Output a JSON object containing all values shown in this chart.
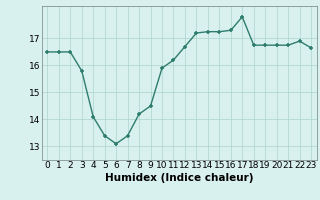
{
  "x": [
    0,
    1,
    2,
    3,
    4,
    5,
    6,
    7,
    8,
    9,
    10,
    11,
    12,
    13,
    14,
    15,
    16,
    17,
    18,
    19,
    20,
    21,
    22,
    23
  ],
  "y": [
    16.5,
    16.5,
    16.5,
    15.8,
    14.1,
    13.4,
    13.1,
    13.4,
    14.2,
    14.5,
    15.9,
    16.2,
    16.7,
    17.2,
    17.25,
    17.25,
    17.3,
    17.8,
    16.75,
    16.75,
    16.75,
    16.75,
    16.9,
    16.65
  ],
  "line_color": "#2e7d6e",
  "marker": "+",
  "bg_color": "#d8f0ee",
  "grid_color": "#aed4ce",
  "xlabel": "Humidex (Indice chaleur)",
  "xlim": [
    -0.5,
    23.5
  ],
  "ylim": [
    12.5,
    18.2
  ],
  "yticks": [
    13,
    14,
    15,
    16,
    17
  ],
  "xticks": [
    0,
    1,
    2,
    3,
    4,
    5,
    6,
    7,
    8,
    9,
    10,
    11,
    12,
    13,
    14,
    15,
    16,
    17,
    18,
    19,
    20,
    21,
    22,
    23
  ],
  "tick_fontsize": 6.5,
  "xlabel_fontsize": 7.5,
  "linewidth": 1.0,
  "markersize": 3.5,
  "markeredgewidth": 1.2
}
